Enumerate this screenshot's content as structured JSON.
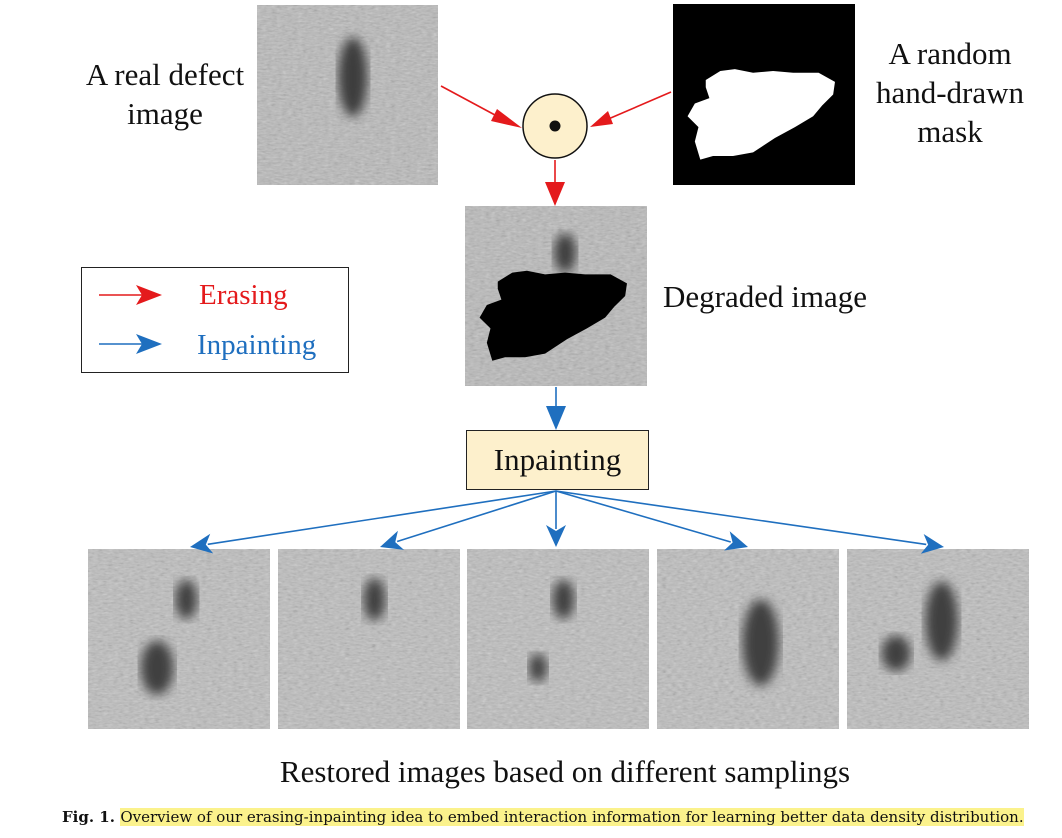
{
  "labels": {
    "real_defect_line1": "A real defect",
    "real_defect_line2": "image",
    "mask_line1": "A random",
    "mask_line2": "hand-drawn",
    "mask_line3": "mask",
    "degraded": "Degraded image",
    "inpainting_box": "Inpainting",
    "restored_caption": "Restored images based on different samplings"
  },
  "legend": {
    "erasing": "Erasing",
    "inpainting": "Inpainting"
  },
  "caption": {
    "fig": "Fig. 1.",
    "text": "Overview of our erasing-inpainting idea to embed interaction information for learning better data density distribution."
  },
  "colors": {
    "erasing_arrow": "#e41a1c",
    "inpainting_arrow": "#1f6fbf",
    "operator_fill": "#fdf0cc",
    "box_fill": "#fdf0cc",
    "caption_highlight": "#fbf28c"
  },
  "operator_symbol": "dot-product-operator",
  "restored_count": 5
}
